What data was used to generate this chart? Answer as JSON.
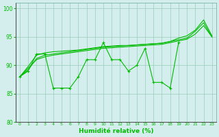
{
  "x": [
    0,
    1,
    2,
    3,
    4,
    5,
    6,
    7,
    8,
    9,
    10,
    11,
    12,
    13,
    14,
    15,
    16,
    17,
    18,
    19,
    20,
    21,
    22,
    23
  ],
  "jagged": [
    88,
    89,
    92,
    92,
    86,
    86,
    86,
    88,
    91,
    91,
    94,
    91,
    91,
    89,
    90,
    93,
    87,
    87,
    86,
    94,
    null,
    null,
    null,
    null
  ],
  "smooth1": [
    88,
    89.5,
    91,
    91.5,
    91.8,
    92,
    92.2,
    92.4,
    92.6,
    92.8,
    93,
    93.1,
    93.2,
    93.3,
    93.4,
    93.5,
    93.6,
    93.7,
    94,
    94.3,
    94.6,
    95.5,
    97,
    95
  ],
  "smooth2": [
    88,
    89.2,
    91.2,
    91.8,
    92,
    92.2,
    92.4,
    92.6,
    92.8,
    93,
    93.2,
    93.3,
    93.4,
    93.5,
    93.6,
    93.7,
    93.8,
    93.9,
    94.2,
    94.5,
    94.8,
    96,
    97.5,
    95
  ],
  "smooth3": [
    88,
    89.8,
    91.8,
    92.2,
    92.4,
    92.5,
    92.6,
    92.7,
    92.9,
    93.1,
    93.3,
    93.4,
    93.5,
    93.5,
    93.6,
    93.7,
    93.8,
    93.9,
    94.2,
    94.8,
    95.2,
    96.2,
    98,
    95.2
  ],
  "line_color": "#00BB00",
  "bg_color": "#D4EEEE",
  "grid_color": "#99CCBB",
  "xlabel": "Humidité relative (%)",
  "ylim": [
    80,
    101
  ],
  "xlim": [
    -0.5,
    23.5
  ],
  "yticks": [
    80,
    85,
    90,
    95,
    100
  ],
  "xtick_labels": [
    "0",
    "1",
    "2",
    "3",
    "4",
    "5",
    "6",
    "7",
    "8",
    "9",
    "10",
    "11",
    "12",
    "13",
    "14",
    "15",
    "16",
    "17",
    "18",
    "19",
    "20",
    "21",
    "22",
    "23"
  ]
}
